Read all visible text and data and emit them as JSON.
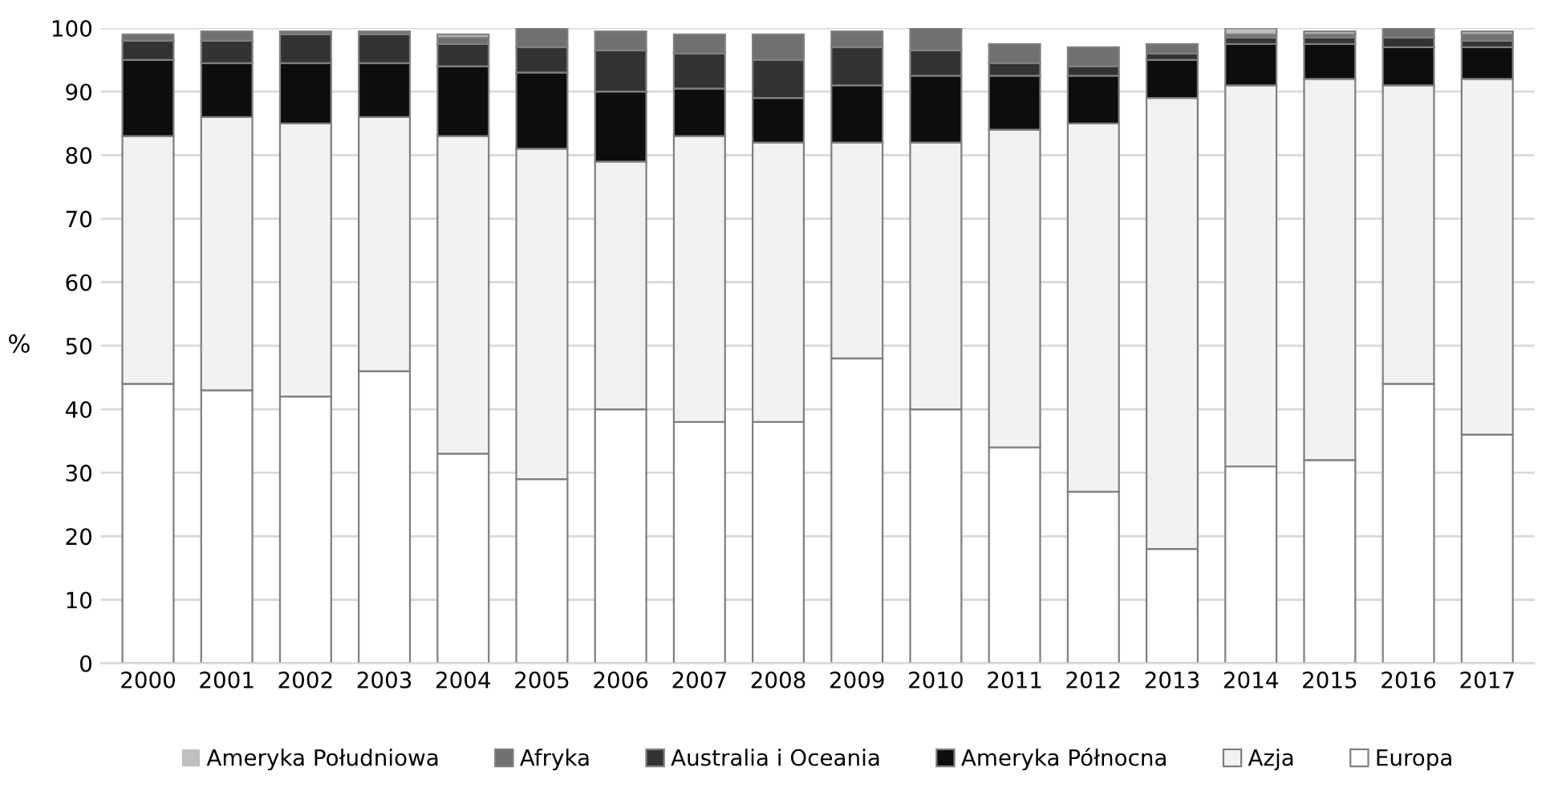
{
  "chart_data": {
    "type": "bar",
    "stacked": true,
    "ylabel": "%",
    "categories": [
      "2000",
      "2001",
      "2002",
      "2003",
      "2004",
      "2005",
      "2006",
      "2007",
      "2008",
      "2009",
      "2010",
      "2011",
      "2012",
      "2013",
      "2014",
      "2015",
      "2016",
      "2017"
    ],
    "series": [
      {
        "name": "Europa",
        "color": "#ffffff",
        "values": [
          44,
          43,
          42,
          46,
          33,
          29,
          40,
          38,
          38,
          48,
          40,
          34,
          27,
          18,
          31,
          32,
          44,
          36
        ]
      },
      {
        "name": "Azja",
        "color": "#f2f2f2",
        "values": [
          39,
          43,
          43,
          40,
          50,
          52,
          39,
          45,
          44,
          34,
          42,
          50,
          58,
          71,
          60,
          60,
          47,
          56
        ]
      },
      {
        "name": "Ameryka Północna",
        "color": "#0d0d0d",
        "values": [
          12,
          8.5,
          9.5,
          8.5,
          11,
          12,
          11,
          7.5,
          7,
          9,
          10.5,
          8.5,
          7.5,
          6,
          6.5,
          5.5,
          6,
          5
        ]
      },
      {
        "name": "Australia i Oceania",
        "color": "#333333",
        "values": [
          3,
          3.5,
          4.5,
          4.5,
          3.5,
          4,
          6.5,
          5.5,
          6,
          6,
          4,
          2,
          1.5,
          1,
          1,
          1,
          1.5,
          1
        ]
      },
      {
        "name": "Afryka",
        "color": "#707070",
        "values": [
          1,
          1.5,
          0.5,
          0.5,
          1,
          3,
          3,
          3,
          4,
          2.5,
          3.5,
          3,
          3,
          1.5,
          0.5,
          0.5,
          1.5,
          1
        ]
      },
      {
        "name": "Ameryka Południowa",
        "color": "#bfbfbf",
        "values": [
          0,
          0,
          0,
          0,
          0.5,
          0,
          0,
          0,
          0,
          0,
          0,
          0,
          0,
          0,
          1,
          0.5,
          0,
          0.5
        ]
      }
    ],
    "ylim": [
      0,
      100
    ],
    "yticks": [
      0,
      10,
      20,
      30,
      40,
      50,
      60,
      70,
      80,
      90,
      100
    ],
    "grid": "y",
    "legend": "bottom"
  }
}
